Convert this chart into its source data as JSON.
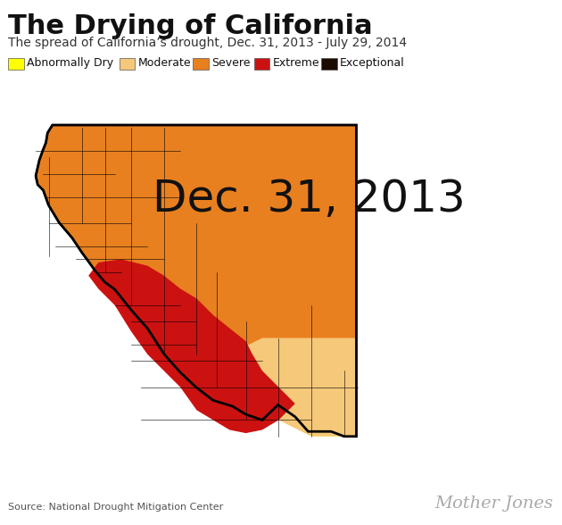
{
  "title": "The Drying of California",
  "subtitle": "The spread of California’s drought, Dec. 31, 2013 - July 29, 2014",
  "date_label": "Dec. 31, 2013",
  "source": "Source: National Drought Mitigation Center",
  "branding": "Mother Jones",
  "background_color": "#ffffff",
  "legend": [
    {
      "label": "Abnormally Dry",
      "color": "#FFFF00"
    },
    {
      "label": "Moderate",
      "color": "#F5C87A"
    },
    {
      "label": "Severe",
      "color": "#E88020"
    },
    {
      "label": "Extreme",
      "color": "#CC1111"
    },
    {
      "label": "Exceptional",
      "color": "#1A0A00"
    }
  ],
  "title_fontsize": 22,
  "subtitle_fontsize": 10,
  "date_fontsize": 36,
  "legend_fontsize": 9,
  "source_fontsize": 8,
  "branding_fontsize": 14
}
